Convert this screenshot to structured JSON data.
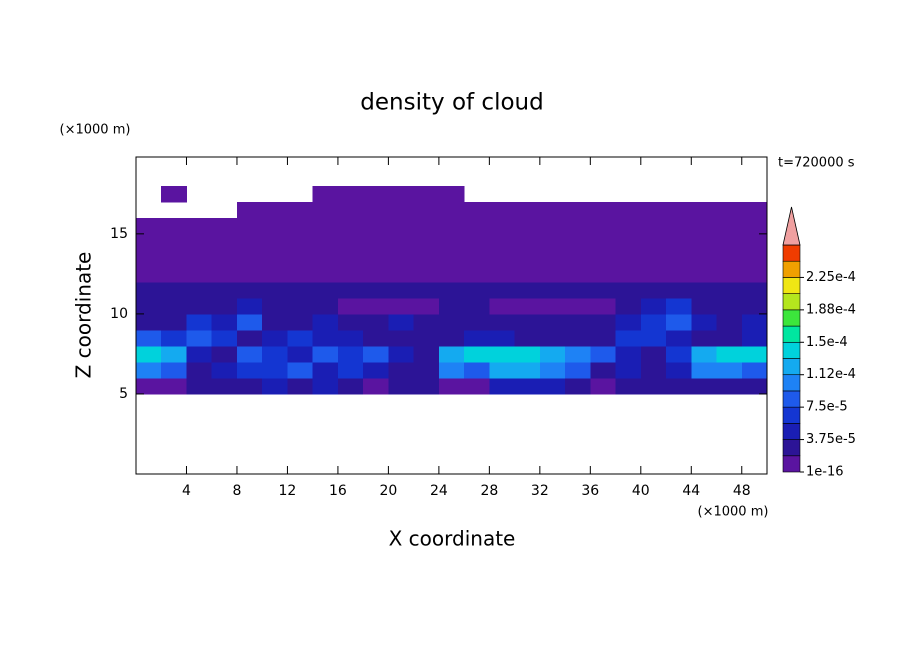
{
  "chart_data": {
    "type": "heatmap",
    "title": "density of cloud",
    "x_label": "X coordinate",
    "y_label": "Z coordinate",
    "x_unit": "(×1000 m)",
    "y_unit": "(×1000 m)",
    "annotation": "t=720000 s",
    "xlim": [
      0,
      50
    ],
    "ylim": [
      0,
      19.8
    ],
    "xticks": [
      4,
      8,
      12,
      16,
      20,
      24,
      28,
      32,
      36,
      40,
      44,
      48
    ],
    "yticks": [
      5,
      10,
      15
    ],
    "x": [
      1,
      3,
      5,
      7,
      9,
      11,
      13,
      15,
      17,
      19,
      21,
      23,
      25,
      27,
      29,
      31,
      33,
      35,
      37,
      39,
      41,
      43,
      45,
      47,
      49
    ],
    "z": [
      5.5,
      6.5,
      7.5,
      8.5,
      9.5,
      10.5,
      11.5,
      12.5,
      13.5,
      14.5,
      15.5,
      16.5,
      17.5
    ],
    "values": [
      [
        1e-16,
        1e-16,
        2e-05,
        2e-05,
        2e-05,
        4e-05,
        2e-05,
        4e-05,
        2e-05,
        1e-16,
        2e-05,
        2e-05,
        1e-16,
        1e-16,
        4e-05,
        4e-05,
        4e-05,
        2e-05,
        1e-16,
        2e-05,
        2e-05,
        2e-05,
        2e-05,
        2e-05,
        2e-05
      ],
      [
        0.0001,
        8e-05,
        2e-05,
        4e-05,
        6e-05,
        6e-05,
        8e-05,
        4e-05,
        6e-05,
        4e-05,
        2e-05,
        2e-05,
        0.0001,
        8e-05,
        0.00012,
        0.00012,
        0.0001,
        8e-05,
        2e-05,
        4e-05,
        2e-05,
        4e-05,
        0.0001,
        0.0001,
        8e-05
      ],
      [
        0.00014,
        0.00012,
        4e-05,
        2e-05,
        8e-05,
        6e-05,
        4e-05,
        8e-05,
        6e-05,
        8e-05,
        4e-05,
        2e-05,
        0.00012,
        0.00014,
        0.00014,
        0.00014,
        0.00012,
        0.0001,
        8e-05,
        4e-05,
        2e-05,
        6e-05,
        0.00012,
        0.00014,
        0.00014
      ],
      [
        8e-05,
        6e-05,
        8e-05,
        6e-05,
        2e-05,
        4e-05,
        6e-05,
        4e-05,
        4e-05,
        2e-05,
        2e-05,
        2e-05,
        2e-05,
        4e-05,
        4e-05,
        2e-05,
        2e-05,
        2e-05,
        2e-05,
        6e-05,
        6e-05,
        4e-05,
        2e-05,
        2e-05,
        4e-05
      ],
      [
        2e-05,
        2e-05,
        6e-05,
        4e-05,
        8e-05,
        2e-05,
        2e-05,
        4e-05,
        2e-05,
        2e-05,
        4e-05,
        2e-05,
        2e-05,
        2e-05,
        2e-05,
        2e-05,
        2e-05,
        2e-05,
        2e-05,
        4e-05,
        6e-05,
        8e-05,
        4e-05,
        2e-05,
        4e-05
      ],
      [
        2e-05,
        2e-05,
        2e-05,
        2e-05,
        4e-05,
        2e-05,
        2e-05,
        2e-05,
        1e-16,
        1e-16,
        1e-16,
        1e-16,
        2e-05,
        2e-05,
        1e-16,
        1e-16,
        1e-16,
        1e-16,
        1e-16,
        2e-05,
        4e-05,
        6e-05,
        2e-05,
        2e-05,
        2e-05
      ],
      [
        2e-05,
        2e-05,
        2e-05,
        2e-05,
        2e-05,
        2e-05,
        2e-05,
        2e-05,
        2e-05,
        2e-05,
        2e-05,
        2e-05,
        2e-05,
        2e-05,
        2e-05,
        2e-05,
        2e-05,
        2e-05,
        2e-05,
        2e-05,
        2e-05,
        2e-05,
        2e-05,
        2e-05,
        2e-05
      ],
      [
        1e-16,
        1e-16,
        1e-16,
        1e-16,
        1e-16,
        1e-16,
        1e-16,
        1e-16,
        1e-16,
        1e-16,
        1e-16,
        1e-16,
        1e-16,
        1e-16,
        1e-16,
        1e-16,
        1e-16,
        1e-16,
        1e-16,
        1e-16,
        1e-16,
        1e-16,
        1e-16,
        1e-16,
        1e-16
      ],
      [
        1e-16,
        1e-16,
        1e-16,
        1e-16,
        1e-16,
        1e-16,
        1e-16,
        1e-16,
        1e-16,
        1e-16,
        1e-16,
        1e-16,
        1e-16,
        1e-16,
        1e-16,
        1e-16,
        1e-16,
        1e-16,
        1e-16,
        1e-16,
        1e-16,
        1e-16,
        1e-16,
        1e-16,
        1e-16
      ],
      [
        1e-16,
        1e-16,
        1e-16,
        1e-16,
        1e-16,
        1e-16,
        1e-16,
        1e-16,
        1e-16,
        1e-16,
        1e-16,
        1e-16,
        1e-16,
        1e-16,
        1e-16,
        1e-16,
        1e-16,
        1e-16,
        1e-16,
        1e-16,
        1e-16,
        1e-16,
        1e-16,
        1e-16,
        1e-16
      ],
      [
        1e-16,
        1e-16,
        1e-16,
        1e-16,
        1e-16,
        1e-16,
        1e-16,
        1e-16,
        1e-16,
        1e-16,
        1e-16,
        1e-16,
        1e-16,
        1e-16,
        1e-16,
        1e-16,
        1e-16,
        1e-16,
        1e-16,
        1e-16,
        1e-16,
        1e-16,
        1e-16,
        1e-16,
        1e-16
      ],
      [
        null,
        null,
        null,
        null,
        1e-16,
        1e-16,
        1e-16,
        1e-16,
        1e-16,
        1e-16,
        1e-16,
        1e-16,
        1e-16,
        1e-16,
        1e-16,
        1e-16,
        1e-16,
        1e-16,
        1e-16,
        1e-16,
        1e-16,
        1e-16,
        1e-16,
        1e-16,
        1e-16
      ],
      [
        null,
        1e-16,
        null,
        null,
        null,
        null,
        null,
        1e-16,
        1e-16,
        1e-16,
        1e-16,
        1e-16,
        1e-16,
        null,
        null,
        null,
        null,
        null,
        null,
        null,
        null,
        null,
        null,
        null,
        null
      ]
    ],
    "colorbar": {
      "levels": [
        1e-16,
        1.875e-05,
        3.75e-05,
        5.625e-05,
        7.5e-05,
        9.375e-05,
        0.000112,
        0.00013125,
        0.00015,
        0.00016875,
        0.000188,
        0.00020625,
        0.000225,
        0.00024375
      ],
      "colors": [
        "#5a14a0",
        "#2c1496",
        "#1a1eb4",
        "#1436d2",
        "#1e5aeb",
        "#1e82f5",
        "#14aaf0",
        "#00d2dc",
        "#00e6a0",
        "#3ce63c",
        "#b4e61e",
        "#f0e614",
        "#f0a000",
        "#f03c00"
      ],
      "extend_color": "#f0a0a0",
      "ticks": [
        1e-16,
        {
          "value": 3.75e-05,
          "label": "3.75e-5"
        },
        {
          "value": 7.5e-05,
          "label": "7.5e-5"
        },
        {
          "value": 0.000112,
          "label": "1.12e-4"
        },
        {
          "value": 0.00015,
          "label": "1.5e-4"
        },
        {
          "value": 0.000188,
          "label": "1.88e-4"
        },
        {
          "value": 0.000225,
          "label": "2.25e-4"
        }
      ]
    }
  }
}
